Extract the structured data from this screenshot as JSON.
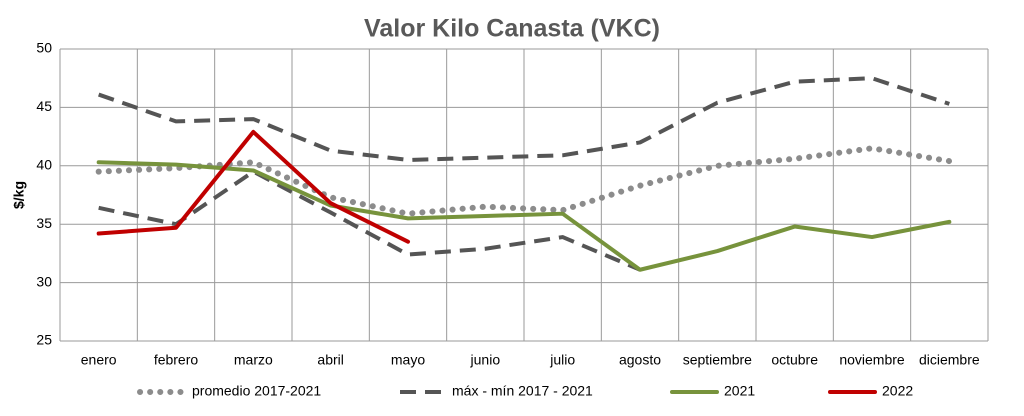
{
  "chart_data": {
    "type": "line",
    "title": "Valor Kilo Canasta (VKC)",
    "ylabel": "$/kg",
    "categories": [
      "enero",
      "febrero",
      "marzo",
      "abril",
      "mayo",
      "junio",
      "julio",
      "agosto",
      "septiembre",
      "octubre",
      "noviembre",
      "diciembre"
    ],
    "ylim": [
      25,
      50
    ],
    "yticks": [
      25,
      30,
      35,
      40,
      45,
      50
    ],
    "grid": true,
    "series": [
      {
        "name": "promedio 2017-2021",
        "color": "#8c8c8c",
        "dash": "dotted",
        "values": [
          39.5,
          39.8,
          40.3,
          37.3,
          35.9,
          36.5,
          36.2,
          38.3,
          40.0,
          40.6,
          41.5,
          40.4
        ]
      },
      {
        "name": "máx -  mín 2017 - 2021",
        "color": "#555555",
        "dash": "dashed",
        "values": [
          46.1,
          43.8,
          44.0,
          41.3,
          40.5,
          40.7,
          40.9,
          42.0,
          45.4,
          47.2,
          47.5,
          45.3
        ],
        "values_min": [
          36.4,
          35.0,
          39.5,
          36.0,
          32.4,
          32.9,
          33.9,
          31.1,
          null,
          null,
          null,
          null
        ]
      },
      {
        "name": "2021",
        "color": "#77933c",
        "dash": "solid",
        "values": [
          40.3,
          40.1,
          39.6,
          36.6,
          35.5,
          35.7,
          35.9,
          31.1,
          32.7,
          34.8,
          33.9,
          35.2
        ]
      },
      {
        "name": "2022",
        "color": "#c00000",
        "dash": "solid",
        "values": [
          34.2,
          34.7,
          42.9,
          36.8,
          33.5,
          null,
          null,
          null,
          null,
          null,
          null,
          null
        ]
      }
    ]
  }
}
